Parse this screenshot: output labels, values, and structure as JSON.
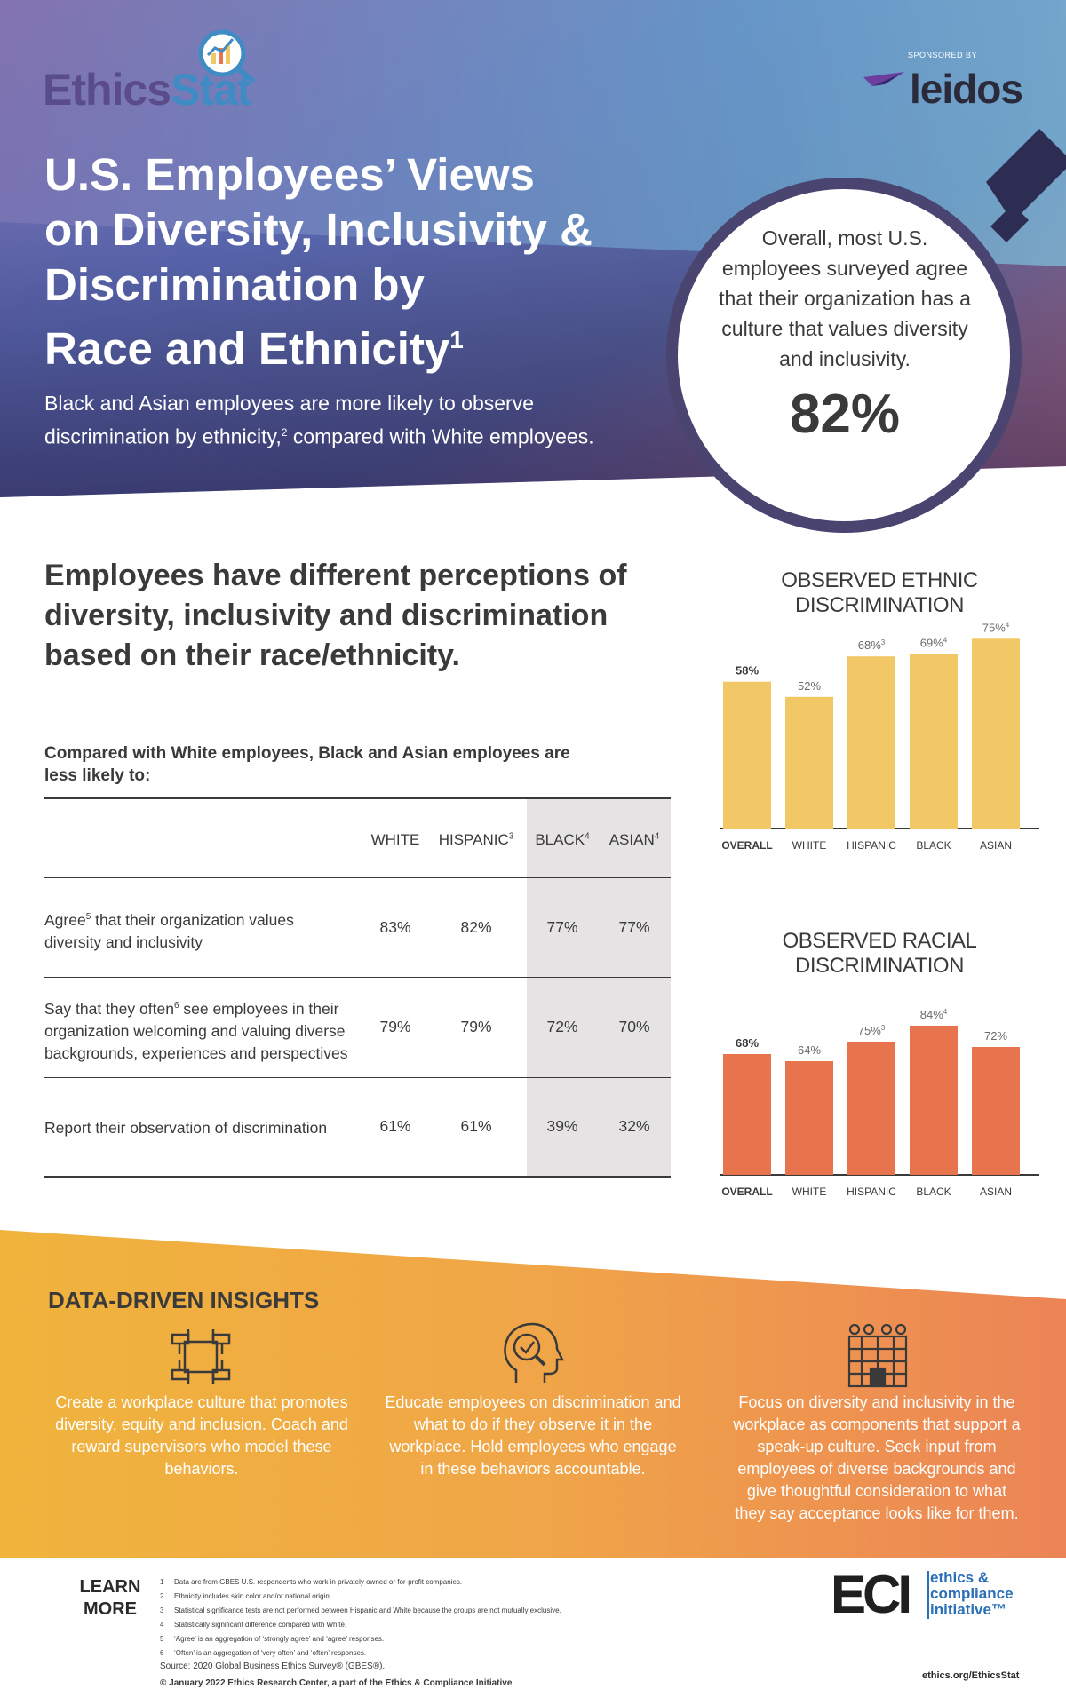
{
  "brand": {
    "logo_a": "Ethics",
    "logo_b": "Stat",
    "sponsor_label": "SPONSORED BY",
    "sponsor_name": "leidos"
  },
  "hero": {
    "title_line1": "U.S. Employees’ Views",
    "title_line2": "on Diversity, Inclusivity &",
    "title_line3": "Discrimination by",
    "title_line4": "Race and Ethnicity",
    "title_sup": "1",
    "subtitle_a": "Black and Asian employees are more likely to observe discrimination by ethnicity,",
    "subtitle_sup": "2",
    "subtitle_b": " compared with White employees.",
    "callout_text": "Overall, most U.S. employees surveyed agree that their organization has a culture that values diversity and inclusivity.",
    "callout_value": "82%"
  },
  "section": {
    "heading": "Employees have different perceptions of diversity, inclusivity and discrimination based on their race/ethnicity.",
    "table_intro": "Compared with White employees, Black and Asian employees are less likely to:"
  },
  "table": {
    "headers": [
      {
        "label": "WHITE",
        "sup": ""
      },
      {
        "label": "HISPANIC",
        "sup": "3"
      },
      {
        "label": "BLACK",
        "sup": "4"
      },
      {
        "label": "ASIAN",
        "sup": "4"
      }
    ],
    "rows": [
      {
        "label_a": "Agree",
        "sup": "5",
        "label_b": " that their organization values diversity and inclusivity",
        "values": [
          "83%",
          "82%",
          "77%",
          "77%"
        ]
      },
      {
        "label_a": "Say that they often",
        "sup": "6",
        "label_b": " see employees in their organization welcoming and valuing diverse backgrounds, experiences and perspectives",
        "values": [
          "79%",
          "79%",
          "72%",
          "70%"
        ]
      },
      {
        "label_a": "Report their observation of discrimination",
        "sup": "",
        "label_b": "",
        "values": [
          "61%",
          "61%",
          "39%",
          "32%"
        ]
      }
    ]
  },
  "chart_data": [
    {
      "type": "bar",
      "title": "OBSERVED ETHNIC DISCRIMINATION",
      "categories": [
        "OVERALL",
        "WHITE",
        "HISPANIC",
        "BLACK",
        "ASIAN"
      ],
      "values": [
        58,
        52,
        68,
        69,
        75
      ],
      "value_labels": [
        "58%",
        "52%",
        "68%",
        "69%",
        "75%"
      ],
      "label_sups": [
        "",
        "",
        "3",
        "4",
        "4"
      ],
      "color": "#f2c866"
    },
    {
      "type": "bar",
      "title": "OBSERVED RACIAL DISCRIMINATION",
      "categories": [
        "OVERALL",
        "WHITE",
        "HISPANIC",
        "BLACK",
        "ASIAN"
      ],
      "values": [
        68,
        64,
        75,
        84,
        72
      ],
      "value_labels": [
        "68%",
        "64%",
        "75%",
        "84%",
        "72%"
      ],
      "label_sups": [
        "",
        "",
        "3",
        "4",
        ""
      ],
      "color": "#e8744e"
    }
  ],
  "insights": {
    "title": "DATA-DRIVEN INSIGHTS",
    "items": [
      {
        "icon": "hands-circle-icon",
        "text": "Create a workplace culture that promotes diversity, equity and inclusion. Coach and reward supervisors who model these behaviors."
      },
      {
        "icon": "head-check-icon",
        "text": "Educate employees on discrimination and what to do if they observe it in the workplace. Hold employees who engage in these behaviors accountable."
      },
      {
        "icon": "people-building-icon",
        "text": "Focus on diversity and inclusivity in the workplace as components that support a speak-up culture. Seek input from employees of diverse backgrounds and give thoughtful consideration to what they say acceptance looks like for them."
      }
    ]
  },
  "footer": {
    "learn_more": "LEARN MORE",
    "notes": [
      "Data are from GBES U.S. respondents who work in privately owned or for-profit companies.",
      "Ethnicity includes skin color and/or national origin.",
      "Statistical significance tests are not performed between Hispanic and White because the groups are not mutually exclusive.",
      "Statistically significant difference compared with White.",
      "‘Agree’ is an aggregation of ‘strongly agree’ and ‘agree’ responses.",
      "‘Often’ is an aggregation of ‘very often’ and ‘often’ responses."
    ],
    "source": "Source: 2020 Global Business Ethics Survey® (GBES®).",
    "copyright": "© January 2022 Ethics Research Center, a part of the Ethics & Compliance Initiative",
    "eci_mark": "ECI",
    "eci_line1": "ethics &",
    "eci_line2": "compliance",
    "eci_line3": "initiative™",
    "url": "ethics.org/EthicsStat"
  },
  "colors": {
    "hero_start": "#6a5a9e",
    "hero_mid": "#5f7fbf",
    "hero_dark": "#2c2f5a",
    "ethnic_bar": "#f2c866",
    "racial_bar": "#e8744e",
    "insight_left": "#f0b43c",
    "insight_right": "#ec8456"
  }
}
